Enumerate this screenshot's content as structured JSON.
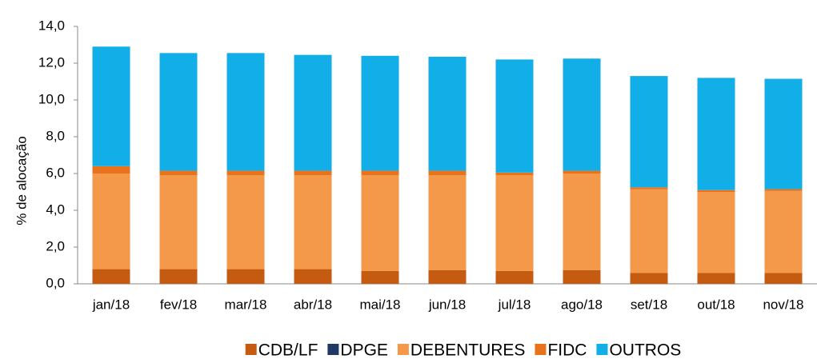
{
  "chart_data": {
    "type": "stacked-bar",
    "y_label": "% de alocação",
    "categories": [
      "jan/18",
      "fev/18",
      "mar/18",
      "abr/18",
      "mai/18",
      "jun/18",
      "jul/18",
      "ago/18",
      "set/18",
      "out/18",
      "nov/18"
    ],
    "series": [
      {
        "name": "CDB/LF",
        "color": "#c55a11",
        "values": [
          0.8,
          0.8,
          0.8,
          0.8,
          0.7,
          0.75,
          0.7,
          0.75,
          0.6,
          0.6,
          0.6
        ]
      },
      {
        "name": "DPGE",
        "color": "#203864",
        "values": [
          0,
          0,
          0,
          0,
          0,
          0,
          0,
          0,
          0,
          0,
          0
        ]
      },
      {
        "name": "DEBENTURES",
        "color": "#f4984a",
        "values": [
          5.2,
          5.1,
          5.1,
          5.1,
          5.2,
          5.15,
          5.2,
          5.25,
          4.55,
          4.4,
          4.45
        ]
      },
      {
        "name": "FIDC",
        "color": "#e8731c",
        "values": [
          0.4,
          0.25,
          0.25,
          0.25,
          0.25,
          0.25,
          0.15,
          0.15,
          0.1,
          0.1,
          0.1
        ]
      },
      {
        "name": "OUTROS",
        "color": "#12aee8",
        "values": [
          6.5,
          6.4,
          6.4,
          6.3,
          6.25,
          6.2,
          6.15,
          6.1,
          6.05,
          6.1,
          6.0
        ]
      }
    ],
    "ylim": [
      0,
      14
    ],
    "yticks": [
      {
        "value": 0,
        "label": "0,0"
      },
      {
        "value": 2,
        "label": "2,0"
      },
      {
        "value": 4,
        "label": "4,0"
      },
      {
        "value": 6,
        "label": "6,0"
      },
      {
        "value": 8,
        "label": "8,0"
      },
      {
        "value": 10,
        "label": "10,0"
      },
      {
        "value": 12,
        "label": "12,0"
      },
      {
        "value": 14,
        "label": "14,0"
      }
    ],
    "legend": "bottom"
  }
}
